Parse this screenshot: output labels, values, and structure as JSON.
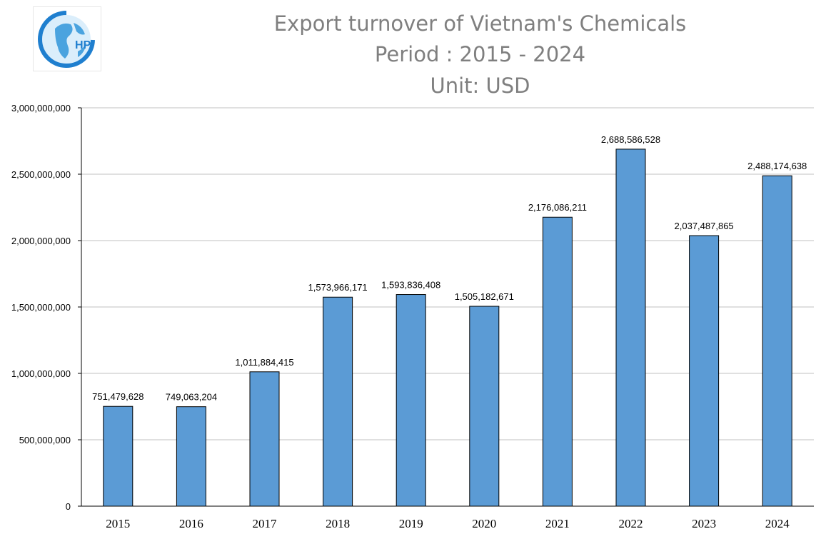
{
  "chart_data": {
    "type": "bar",
    "title": [
      "Export turnover of Vietnam's Chemicals",
      "Period : 2015 - 2024",
      "Unit: USD"
    ],
    "xlabel": "",
    "ylabel": "",
    "ylim": [
      0,
      3000000000
    ],
    "y_ticks": [
      "0",
      "500,000,000",
      "1,000,000,000",
      "1,500,000,000",
      "2,000,000,000",
      "2,500,000,000",
      "3,000,000,000"
    ],
    "y_tick_values": [
      0,
      500000000,
      1000000000,
      1500000000,
      2000000000,
      2500000000,
      3000000000
    ],
    "grid": true,
    "legend": "none",
    "categories": [
      "2015",
      "2016",
      "2017",
      "2018",
      "2019",
      "2020",
      "2021",
      "2022",
      "2023",
      "2024"
    ],
    "values": [
      751479628,
      749063204,
      1011884415,
      1573966171,
      1593836408,
      1505182671,
      2176086211,
      2688586528,
      2037487865,
      2488174638
    ],
    "data_labels": [
      "751,479,628",
      "749,063,204",
      "1,011,884,415",
      "1,573,966,171",
      "1,593,836,408",
      "1,505,182,671",
      "2,176,086,211",
      "2,688,586,528",
      "2,037,487,865",
      "2,488,174,638"
    ],
    "bar_color": "#5b9bd5",
    "bar_border_color": "#000000",
    "gridline_color": "#c0c0c0"
  },
  "logo": {
    "text": "HP",
    "icon": "globe-logo-icon",
    "colors": [
      "#1f7fcf",
      "#5ab4e8"
    ]
  }
}
